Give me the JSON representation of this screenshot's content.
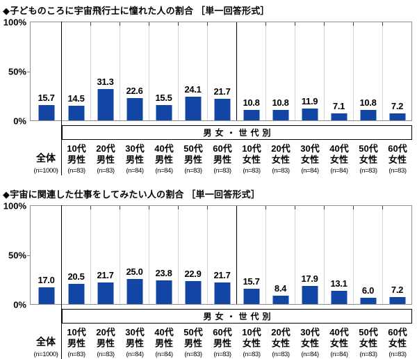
{
  "chart_data": [
    {
      "type": "bar",
      "title": "◆子どものころに宇宙飛行士に憧れた人の割合 ［単一回答形式］",
      "group_band_label": "男女・世代別",
      "y_tick_labels": [
        "0%",
        "50%",
        "100%"
      ],
      "ylim": [
        0,
        100
      ],
      "grid": "vertical-category-separators",
      "legend": "none",
      "bar_color": "#1345a5",
      "categories": [
        "全体",
        "10代男性",
        "20代男性",
        "30代男性",
        "40代男性",
        "50代男性",
        "60代男性",
        "10代女性",
        "20代女性",
        "30代女性",
        "40代女性",
        "50代女性",
        "60代女性"
      ],
      "category_lines": [
        [
          "全体"
        ],
        [
          "10代",
          "男性"
        ],
        [
          "20代",
          "男性"
        ],
        [
          "30代",
          "男性"
        ],
        [
          "40代",
          "男性"
        ],
        [
          "50代",
          "男性"
        ],
        [
          "60代",
          "男性"
        ],
        [
          "10代",
          "女性"
        ],
        [
          "20代",
          "女性"
        ],
        [
          "30代",
          "女性"
        ],
        [
          "40代",
          "女性"
        ],
        [
          "50代",
          "女性"
        ],
        [
          "60代",
          "女性"
        ]
      ],
      "n_labels": [
        "(n=1000)",
        "(n=83)",
        "(n=83)",
        "(n=84)",
        "(n=84)",
        "(n=83)",
        "(n=83)",
        "(n=83)",
        "(n=83)",
        "(n=84)",
        "(n=84)",
        "(n=83)",
        "(n=83)"
      ],
      "values": [
        15.7,
        14.5,
        31.3,
        22.6,
        15.5,
        24.1,
        21.7,
        10.8,
        10.8,
        11.9,
        7.1,
        10.8,
        7.2
      ]
    },
    {
      "type": "bar",
      "title": "◆宇宙に関連した仕事をしてみたい人の割合 ［単一回答形式］",
      "group_band_label": "男女・世代別",
      "y_tick_labels": [
        "0%",
        "50%",
        "100%"
      ],
      "ylim": [
        0,
        100
      ],
      "grid": "vertical-category-separators",
      "legend": "none",
      "bar_color": "#1345a5",
      "categories": [
        "全体",
        "10代男性",
        "20代男性",
        "30代男性",
        "40代男性",
        "50代男性",
        "60代男性",
        "10代女性",
        "20代女性",
        "30代女性",
        "40代女性",
        "50代女性",
        "60代女性"
      ],
      "category_lines": [
        [
          "全体"
        ],
        [
          "10代",
          "男性"
        ],
        [
          "20代",
          "男性"
        ],
        [
          "30代",
          "男性"
        ],
        [
          "40代",
          "男性"
        ],
        [
          "50代",
          "男性"
        ],
        [
          "60代",
          "男性"
        ],
        [
          "10代",
          "女性"
        ],
        [
          "20代",
          "女性"
        ],
        [
          "30代",
          "女性"
        ],
        [
          "40代",
          "女性"
        ],
        [
          "50代",
          "女性"
        ],
        [
          "60代",
          "女性"
        ]
      ],
      "n_labels": [
        "(n=1000)",
        "(n=83)",
        "(n=83)",
        "(n=84)",
        "(n=84)",
        "(n=83)",
        "(n=83)",
        "(n=83)",
        "(n=83)",
        "(n=84)",
        "(n=84)",
        "(n=83)",
        "(n=83)"
      ],
      "values": [
        17.0,
        20.5,
        21.7,
        25.0,
        23.8,
        22.9,
        21.7,
        15.7,
        8.4,
        17.9,
        13.1,
        6.0,
        7.2
      ]
    }
  ]
}
